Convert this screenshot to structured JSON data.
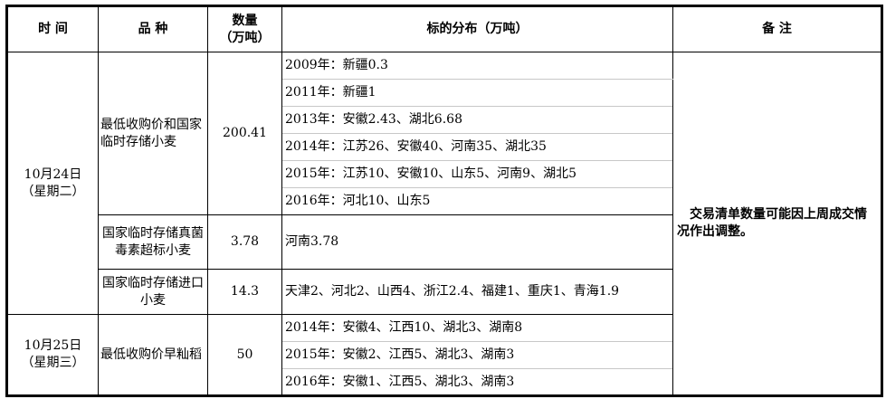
{
  "headers": {
    "time": "时 间",
    "variety": "品 种",
    "quantity": "数量\n（万吨）",
    "distribution": "标的分布（万吨）",
    "remarks": "备 注"
  },
  "rows": [
    {
      "date": "10月24日",
      "weekday": "（星期二）",
      "items": [
        {
          "variety": "最低收购价和国家临时存储小麦",
          "quantity": "200.41",
          "distribution": [
            "2009年：新疆0.3",
            "2011年：新疆1",
            "2013年：安徽2.43、湖北6.68",
            "2014年：江苏26、安徽40、河南35、湖北35",
            "2015年：江苏10、安徽10、山东5、河南9、湖北5",
            "2016年：河北10、山东5"
          ]
        },
        {
          "variety": "国家临时存储真菌毒素超标小麦",
          "quantity": "3.78",
          "distribution": [
            "河南3.78"
          ]
        },
        {
          "variety": "国家临时存储进口小麦",
          "quantity": "14.3",
          "distribution": [
            "天津2、河北2、山西4、浙江2.4、福建1、重庆1、青海1.9"
          ]
        }
      ]
    },
    {
      "date": "10月25日",
      "weekday": "（星期三）",
      "items": [
        {
          "variety": "最低收购价早籼稻",
          "quantity": "50",
          "distribution": [
            "2014年：安徽4、江西10、湖北3、湖南8",
            "2015年：安徽2、江西5、湖北3、湖南3",
            "2016年：安徽1、江西5、湖北3、湖南3"
          ]
        }
      ]
    }
  ],
  "remarks": "交易清单数量可能因上周成交情况作出调整。"
}
